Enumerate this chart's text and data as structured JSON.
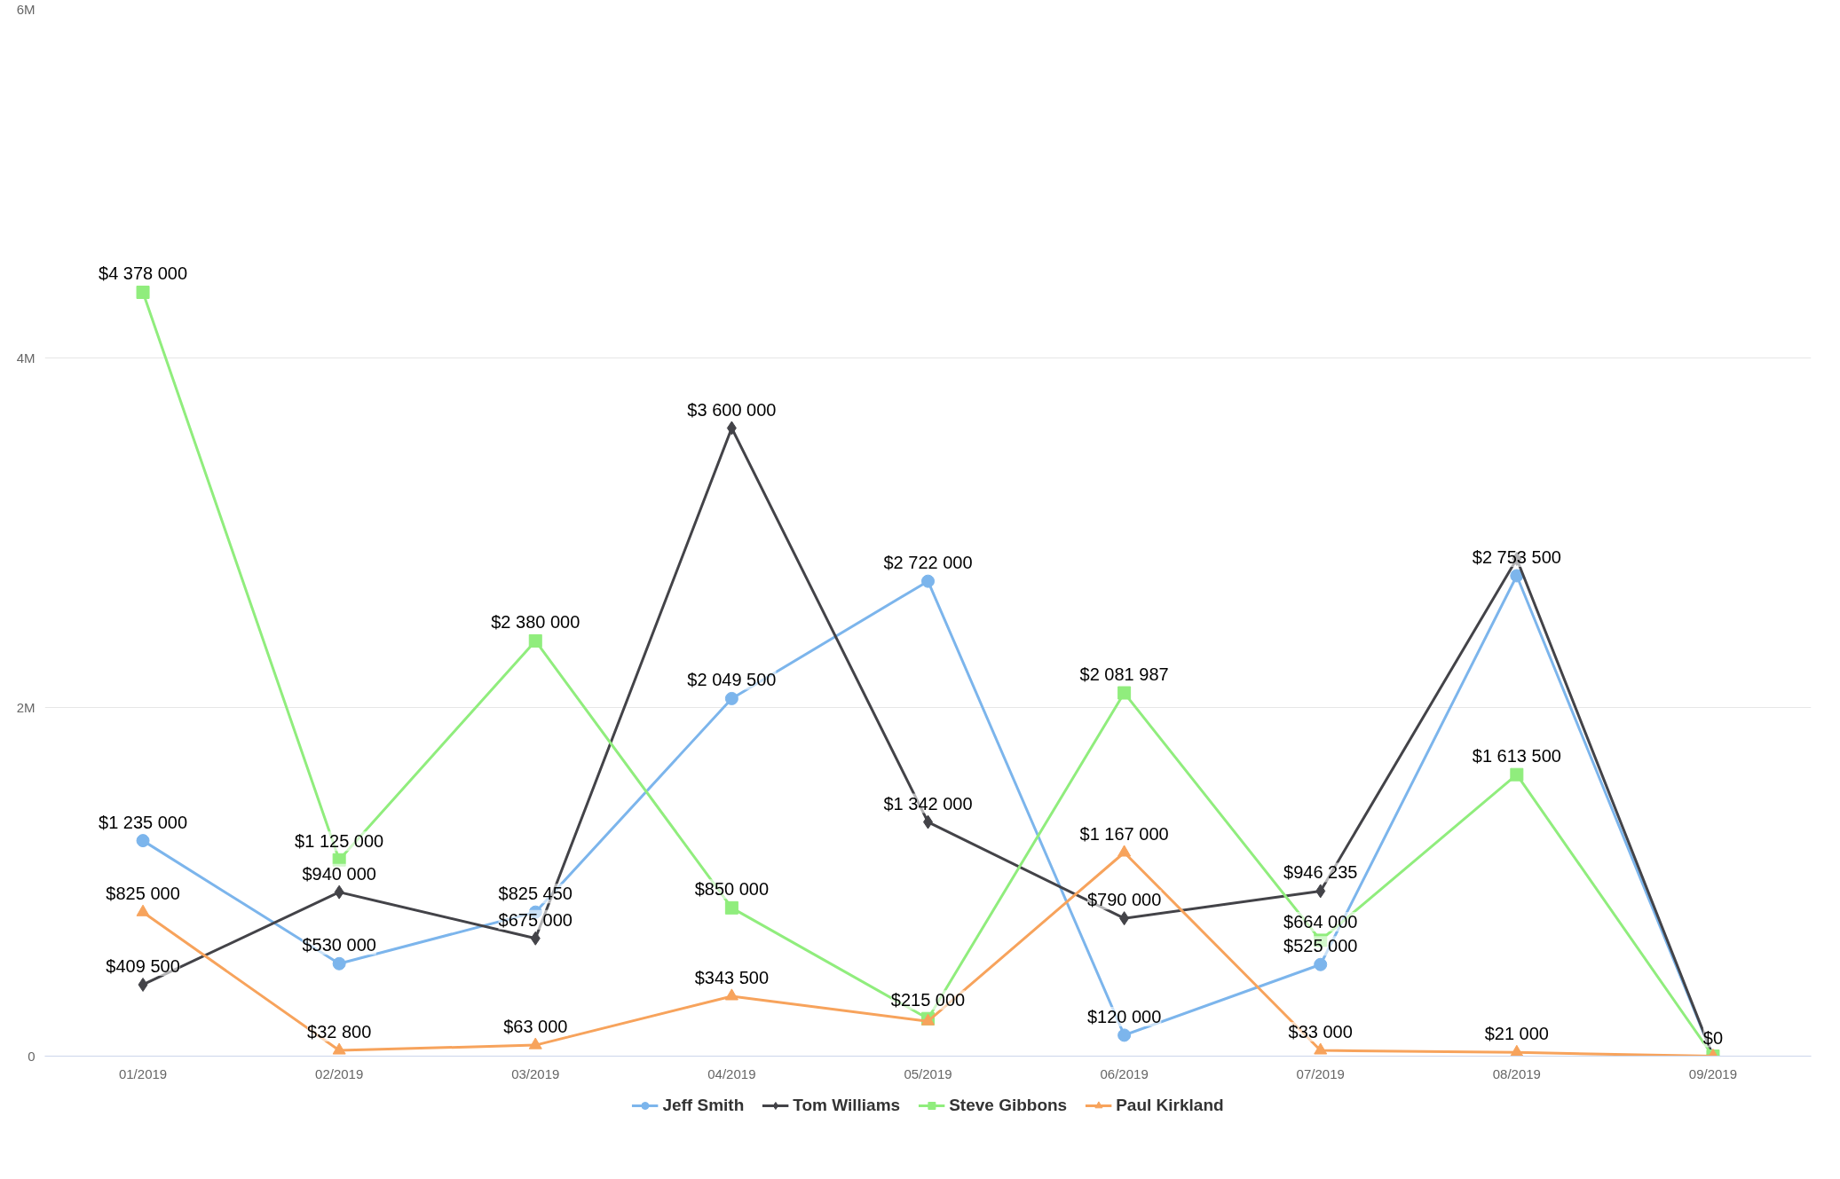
{
  "chart_data": {
    "type": "line",
    "categories": [
      "01/2019",
      "02/2019",
      "03/2019",
      "04/2019",
      "05/2019",
      "06/2019",
      "07/2019",
      "08/2019",
      "09/2019"
    ],
    "ylim": [
      0,
      6000000
    ],
    "yticks": [
      {
        "value": 0,
        "label": "0"
      },
      {
        "value": 2000000,
        "label": "2M"
      },
      {
        "value": 4000000,
        "label": "4M"
      },
      {
        "value": 6000000,
        "label": "6M"
      }
    ],
    "grid": "y",
    "legend": "bottom",
    "series": [
      {
        "name": "Jeff Smith",
        "color": "#7cb5ec",
        "marker": "circle",
        "values": [
          1235000,
          530000,
          825450,
          2049500,
          2722000,
          120000,
          525000,
          2753500,
          0
        ],
        "value_labels": [
          "$1 235 000",
          "$530 000",
          "$825 450",
          "$2 049 500",
          "$2 722 000",
          "$120 000",
          "$525 000",
          "$2 753 500",
          null
        ]
      },
      {
        "name": "Tom Williams",
        "color": "#434348",
        "marker": "diamond",
        "values": [
          409500,
          940000,
          675000,
          3600000,
          1342000,
          790000,
          946235,
          2850000,
          0
        ],
        "value_labels": [
          "$409 500",
          "$940 000",
          "$675 000",
          "$3 600 000",
          "$1 342 000",
          "$790 000",
          "$946 235",
          null,
          null
        ]
      },
      {
        "name": "Steve Gibbons",
        "color": "#90ed7d",
        "marker": "square",
        "values": [
          4378000,
          1125000,
          2380000,
          850000,
          215000,
          2081987,
          664000,
          1613500,
          0
        ],
        "value_labels": [
          "$4 378 000",
          "$1 125 000",
          "$2 380 000",
          "$850 000",
          "$215 000",
          "$2 081 987",
          "$664 000",
          "$1 613 500",
          null
        ]
      },
      {
        "name": "Paul Kirkland",
        "color": "#f7a35c",
        "marker": "triangle",
        "values": [
          825000,
          32800,
          63000,
          343500,
          200000,
          1167000,
          33000,
          21000,
          0
        ],
        "value_labels": [
          "$825 000",
          "$32 800",
          "$63 000",
          "$343 500",
          null,
          "$1 167 000",
          "$33 000",
          "$21 000",
          "$0"
        ]
      }
    ]
  }
}
